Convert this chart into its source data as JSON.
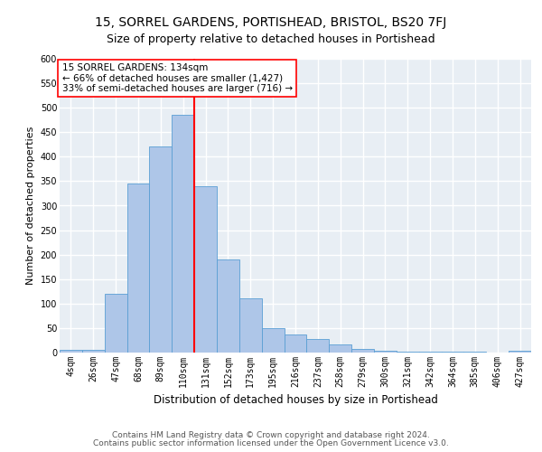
{
  "title1": "15, SORREL GARDENS, PORTISHEAD, BRISTOL, BS20 7FJ",
  "title2": "Size of property relative to detached houses in Portishead",
  "xlabel": "Distribution of detached houses by size in Portishead",
  "ylabel": "Number of detached properties",
  "categories": [
    "4sqm",
    "26sqm",
    "47sqm",
    "68sqm",
    "89sqm",
    "110sqm",
    "131sqm",
    "152sqm",
    "173sqm",
    "195sqm",
    "216sqm",
    "237sqm",
    "258sqm",
    "279sqm",
    "300sqm",
    "321sqm",
    "342sqm",
    "364sqm",
    "385sqm",
    "406sqm",
    "427sqm"
  ],
  "values": [
    5,
    5,
    120,
    345,
    420,
    485,
    340,
    190,
    110,
    50,
    37,
    28,
    17,
    8,
    3,
    2,
    1,
    1,
    1,
    0,
    3
  ],
  "bar_color": "#aec6e8",
  "bar_edge_color": "#5a9fd4",
  "annotation_box_text": "15 SORREL GARDENS: 134sqm\n← 66% of detached houses are smaller (1,427)\n33% of semi-detached houses are larger (716) →",
  "annotation_box_color": "white",
  "annotation_box_edge_color": "red",
  "vline_color": "red",
  "vline_x": 5.5,
  "ylim": [
    0,
    600
  ],
  "yticks": [
    0,
    50,
    100,
    150,
    200,
    250,
    300,
    350,
    400,
    450,
    500,
    550,
    600
  ],
  "bg_color": "#e8eef4",
  "grid_color": "white",
  "footer1": "Contains HM Land Registry data © Crown copyright and database right 2024.",
  "footer2": "Contains public sector information licensed under the Open Government Licence v3.0.",
  "title1_fontsize": 10,
  "title2_fontsize": 9,
  "xlabel_fontsize": 8.5,
  "ylabel_fontsize": 8,
  "tick_fontsize": 7,
  "annotation_fontsize": 7.5,
  "footer_fontsize": 6.5
}
